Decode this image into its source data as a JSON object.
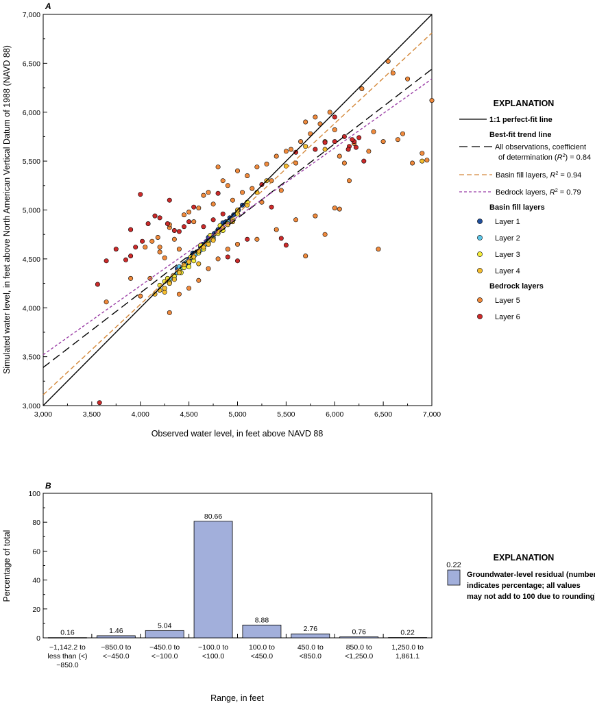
{
  "chart_data": [
    {
      "panel": "A",
      "type": "scatter",
      "xlabel": "Observed water level, in feet above NAVD 88",
      "ylabel": "Simulated water level, in feet above North American Vertical Datum of 1988 (NAVD 88)",
      "xlim": [
        3000,
        7000
      ],
      "ylim": [
        3000,
        7000
      ],
      "xticks": [
        "3,000",
        "3,500",
        "4,000",
        "4,500",
        "5,000",
        "5,500",
        "6,000",
        "6,500",
        "7,000"
      ],
      "yticks": [
        "3,000",
        "3,500",
        "4,000",
        "4,500",
        "5,000",
        "5,500",
        "6,000",
        "6,500",
        "7,000"
      ],
      "lines": [
        {
          "key": "perfect",
          "x": [
            3000,
            7000
          ],
          "y": [
            3000,
            7000
          ],
          "color": "#000000",
          "dash": ""
        },
        {
          "key": "all",
          "x": [
            3000,
            7000
          ],
          "y": [
            3390,
            6440
          ],
          "color": "#000000",
          "dash": "12,6"
        },
        {
          "key": "basin",
          "x": [
            3000,
            7000
          ],
          "y": [
            3110,
            6810
          ],
          "color": "#d4883a",
          "dash": "7,4"
        },
        {
          "key": "bedrock",
          "x": [
            3000,
            7000
          ],
          "y": [
            3520,
            6340
          ],
          "color": "#9b3fa6",
          "dash": "4,3"
        }
      ],
      "series": [
        {
          "name": "Layer 1",
          "color": "#1f4e9c",
          "points": [
            [
              4380,
              4400
            ],
            [
              4450,
              4450
            ],
            [
              4500,
              4500
            ],
            [
              4560,
              4550
            ],
            [
              4620,
              4620
            ],
            [
              4680,
              4680
            ],
            [
              4720,
              4740
            ],
            [
              4760,
              4760
            ],
            [
              4800,
              4800
            ],
            [
              4850,
              4870
            ],
            [
              4880,
              4880
            ],
            [
              4920,
              4920
            ],
            [
              4960,
              4950
            ],
            [
              5010,
              5000
            ],
            [
              5050,
              5050
            ],
            [
              4700,
              4720
            ],
            [
              4640,
              4650
            ],
            [
              4540,
              4560
            ]
          ]
        },
        {
          "name": "Layer 2",
          "color": "#5cc6e8",
          "points": [
            [
              4300,
              4290
            ],
            [
              4340,
              4330
            ],
            [
              4380,
              4360
            ],
            [
              4420,
              4410
            ],
            [
              4460,
              4440
            ],
            [
              4500,
              4460
            ],
            [
              4540,
              4510
            ],
            [
              4580,
              4560
            ],
            [
              4620,
              4590
            ],
            [
              4660,
              4640
            ],
            [
              4700,
              4680
            ],
            [
              4750,
              4720
            ],
            [
              4790,
              4780
            ],
            [
              4840,
              4800
            ],
            [
              4900,
              4880
            ],
            [
              4400,
              4420
            ],
            [
              4480,
              4470
            ],
            [
              4560,
              4540
            ]
          ]
        },
        {
          "name": "Layer 3",
          "color": "#f4ec3a",
          "points": [
            [
              4200,
              4230
            ],
            [
              4250,
              4270
            ],
            [
              4300,
              4260
            ],
            [
              4350,
              4320
            ],
            [
              4400,
              4380
            ],
            [
              4450,
              4410
            ],
            [
              4500,
              4420
            ],
            [
              4550,
              4480
            ],
            [
              4600,
              4560
            ],
            [
              4650,
              4600
            ],
            [
              4700,
              4660
            ],
            [
              4750,
              4700
            ],
            [
              4800,
              4760
            ],
            [
              4850,
              4790
            ],
            [
              4900,
              4860
            ],
            [
              4950,
              4900
            ],
            [
              5000,
              4960
            ],
            [
              5100,
              5080
            ],
            [
              4280,
              4300
            ],
            [
              4420,
              4360
            ],
            [
              4520,
              4520
            ],
            [
              4620,
              4640
            ],
            [
              4720,
              4740
            ],
            [
              4820,
              4840
            ]
          ]
        },
        {
          "name": "Layer 4",
          "color": "#f5bd2e",
          "points": [
            [
              4150,
              4140
            ],
            [
              4200,
              4180
            ],
            [
              4250,
              4200
            ],
            [
              4300,
              4250
            ],
            [
              4350,
              4290
            ],
            [
              4400,
              4360
            ],
            [
              4450,
              4440
            ],
            [
              4500,
              4470
            ],
            [
              4550,
              4520
            ],
            [
              4600,
              4580
            ],
            [
              4650,
              4620
            ],
            [
              4700,
              4650
            ],
            [
              4750,
              4690
            ],
            [
              4800,
              4780
            ],
            [
              4850,
              4820
            ],
            [
              4900,
              4850
            ],
            [
              4950,
              4880
            ],
            [
              5000,
              5000
            ],
            [
              5100,
              5050
            ],
            [
              5200,
              5180
            ],
            [
              5300,
              5300
            ],
            [
              5500,
              5450
            ],
            [
              5700,
              5650
            ],
            [
              5900,
              5620
            ],
            [
              6200,
              5700
            ],
            [
              6900,
              5500
            ],
            [
              4250,
              4160
            ],
            [
              4600,
              4450
            ]
          ]
        },
        {
          "name": "Layer 5",
          "color": "#f08a3c",
          "points": [
            [
              3650,
              4060
            ],
            [
              3900,
              4300
            ],
            [
              4050,
              4620
            ],
            [
              4120,
              4680
            ],
            [
              4180,
              4720
            ],
            [
              4250,
              4510
            ],
            [
              4300,
              4820
            ],
            [
              4350,
              4700
            ],
            [
              4400,
              4600
            ],
            [
              4450,
              4950
            ],
            [
              4500,
              4980
            ],
            [
              4550,
              4880
            ],
            [
              4600,
              5020
            ],
            [
              4650,
              5150
            ],
            [
              4700,
              5180
            ],
            [
              4750,
              5060
            ],
            [
              4800,
              5440
            ],
            [
              4850,
              5300
            ],
            [
              4900,
              5250
            ],
            [
              4950,
              5100
            ],
            [
              5000,
              5400
            ],
            [
              5050,
              5180
            ],
            [
              5100,
              5350
            ],
            [
              5150,
              5220
            ],
            [
              5200,
              5440
            ],
            [
              5250,
              5080
            ],
            [
              5300,
              5470
            ],
            [
              5350,
              5300
            ],
            [
              5400,
              5550
            ],
            [
              5450,
              5200
            ],
            [
              5500,
              5600
            ],
            [
              5550,
              5620
            ],
            [
              5600,
              5480
            ],
            [
              5650,
              5700
            ],
            [
              5700,
              5900
            ],
            [
              5750,
              5780
            ],
            [
              5800,
              5950
            ],
            [
              5850,
              5880
            ],
            [
              5900,
              5700
            ],
            [
              5950,
              6000
            ],
            [
              6000,
              5820
            ],
            [
              6050,
              5550
            ],
            [
              6100,
              5480
            ],
            [
              6150,
              5300
            ],
            [
              6200,
              5680
            ],
            [
              6280,
              6240
            ],
            [
              6350,
              5600
            ],
            [
              6400,
              5800
            ],
            [
              6450,
              4600
            ],
            [
              6500,
              5700
            ],
            [
              6550,
              6520
            ],
            [
              6600,
              6400
            ],
            [
              6650,
              5720
            ],
            [
              6700,
              5780
            ],
            [
              6750,
              6340
            ],
            [
              6800,
              5480
            ],
            [
              6900,
              5580
            ],
            [
              6950,
              5510
            ],
            [
              7000,
              6120
            ],
            [
              4300,
              3950
            ],
            [
              4400,
              4140
            ],
            [
              4500,
              4200
            ],
            [
              4600,
              4280
            ],
            [
              4700,
              4400
            ],
            [
              4800,
              4500
            ],
            [
              4900,
              4600
            ],
            [
              5000,
              4650
            ],
            [
              5200,
              4700
            ],
            [
              5400,
              4800
            ],
            [
              5600,
              4900
            ],
            [
              5800,
              4940
            ],
            [
              6000,
              5020
            ],
            [
              6050,
              5010
            ],
            [
              5700,
              4530
            ],
            [
              5900,
              4750
            ],
            [
              4200,
              4570
            ],
            [
              4000,
              4120
            ],
            [
              4100,
              4300
            ],
            [
              4200,
              4620
            ],
            [
              4300,
              4850
            ]
          ]
        },
        {
          "name": "Layer 6",
          "color": "#cc2a2a",
          "points": [
            [
              3560,
              4240
            ],
            [
              3580,
              3030
            ],
            [
              3650,
              4480
            ],
            [
              3750,
              4600
            ],
            [
              3850,
              4490
            ],
            [
              3900,
              4530
            ],
            [
              3950,
              4620
            ],
            [
              4000,
              5160
            ],
            [
              4020,
              4680
            ],
            [
              4080,
              4860
            ],
            [
              4150,
              4940
            ],
            [
              4200,
              4920
            ],
            [
              4280,
              4860
            ],
            [
              4350,
              4790
            ],
            [
              4400,
              4780
            ],
            [
              4450,
              4830
            ],
            [
              4500,
              4880
            ],
            [
              4550,
              5030
            ],
            [
              4800,
              5170
            ],
            [
              4900,
              4520
            ],
            [
              5000,
              4480
            ],
            [
              5250,
              5260
            ],
            [
              5350,
              5030
            ],
            [
              5450,
              4710
            ],
            [
              5600,
              5590
            ],
            [
              5800,
              5620
            ],
            [
              5900,
              5690
            ],
            [
              6000,
              5950
            ],
            [
              6100,
              5750
            ],
            [
              6150,
              5650
            ],
            [
              6200,
              5700
            ],
            [
              6180,
              5720
            ],
            [
              6220,
              5640
            ],
            [
              6140,
              5620
            ],
            [
              4650,
              4830
            ],
            [
              4750,
              4900
            ],
            [
              4850,
              4960
            ],
            [
              3900,
              4800
            ],
            [
              4300,
              5100
            ],
            [
              5100,
              4700
            ],
            [
              5500,
              4640
            ],
            [
              6300,
              5500
            ],
            [
              6000,
              5700
            ],
            [
              6250,
              5740
            ]
          ]
        }
      ]
    },
    {
      "panel": "B",
      "type": "bar",
      "xlabel": "Range, in feet",
      "ylabel": "Percentage of total",
      "ylim": [
        0,
        100
      ],
      "yticks": [
        "0",
        "20",
        "40",
        "60",
        "80",
        "100"
      ],
      "bar_color": "#a2afdb",
      "categories": [
        [
          "−1,142.2 to",
          "less than (<)",
          "−850.0"
        ],
        [
          "−850.0 to",
          "<−450.0"
        ],
        [
          "−450.0 to",
          "<−100.0"
        ],
        [
          "−100.0 to",
          "<100.0"
        ],
        [
          "100.0 to",
          "<450.0"
        ],
        [
          "450.0 to",
          "<850.0"
        ],
        [
          "850.0 to",
          "<1,250.0"
        ],
        [
          "1,250.0 to",
          "1,861.1"
        ]
      ],
      "values": [
        0.16,
        1.46,
        5.04,
        80.66,
        8.88,
        2.76,
        0.76,
        0.22
      ],
      "value_labels": [
        "0.16",
        "1.46",
        "5.04",
        "80.66",
        "8.88",
        "2.76",
        "0.76",
        "0.22"
      ]
    }
  ],
  "panels": {
    "a_label": "A",
    "b_label": "B"
  },
  "legend_a": {
    "title": "EXPLANATION",
    "perfect_fit": "1:1 perfect-fit line",
    "best_fit_header": "Best-fit trend line",
    "all_obs_line1": "All observations, coefficient",
    "all_obs_line2a": "of determination (",
    "all_obs_r": "R",
    "all_obs_sup": "2",
    "all_obs_line2b": ") = 0.84",
    "basin_text": "Basin fill layers, ",
    "basin_r": "R",
    "basin_sup": "2",
    "basin_val": " = 0.94",
    "bedrock_text": "Bedrock layers, ",
    "bedrock_r": "R",
    "bedrock_sup": "2",
    "bedrock_val": " = 0.79",
    "basin_header": "Basin fill layers",
    "layer1": "Layer 1",
    "layer2": "Layer 2",
    "layer3": "Layer 3",
    "layer4": "Layer 4",
    "bedrock_header": "Bedrock layers",
    "layer5": "Layer 5",
    "layer6": "Layer 6"
  },
  "legend_b": {
    "title": "EXPLANATION",
    "sample_value": "0.22",
    "line1": "Groundwater-level residual (number",
    "line2": "indicates percentage; all values",
    "line3": "may not add to 100 due to rounding)"
  }
}
